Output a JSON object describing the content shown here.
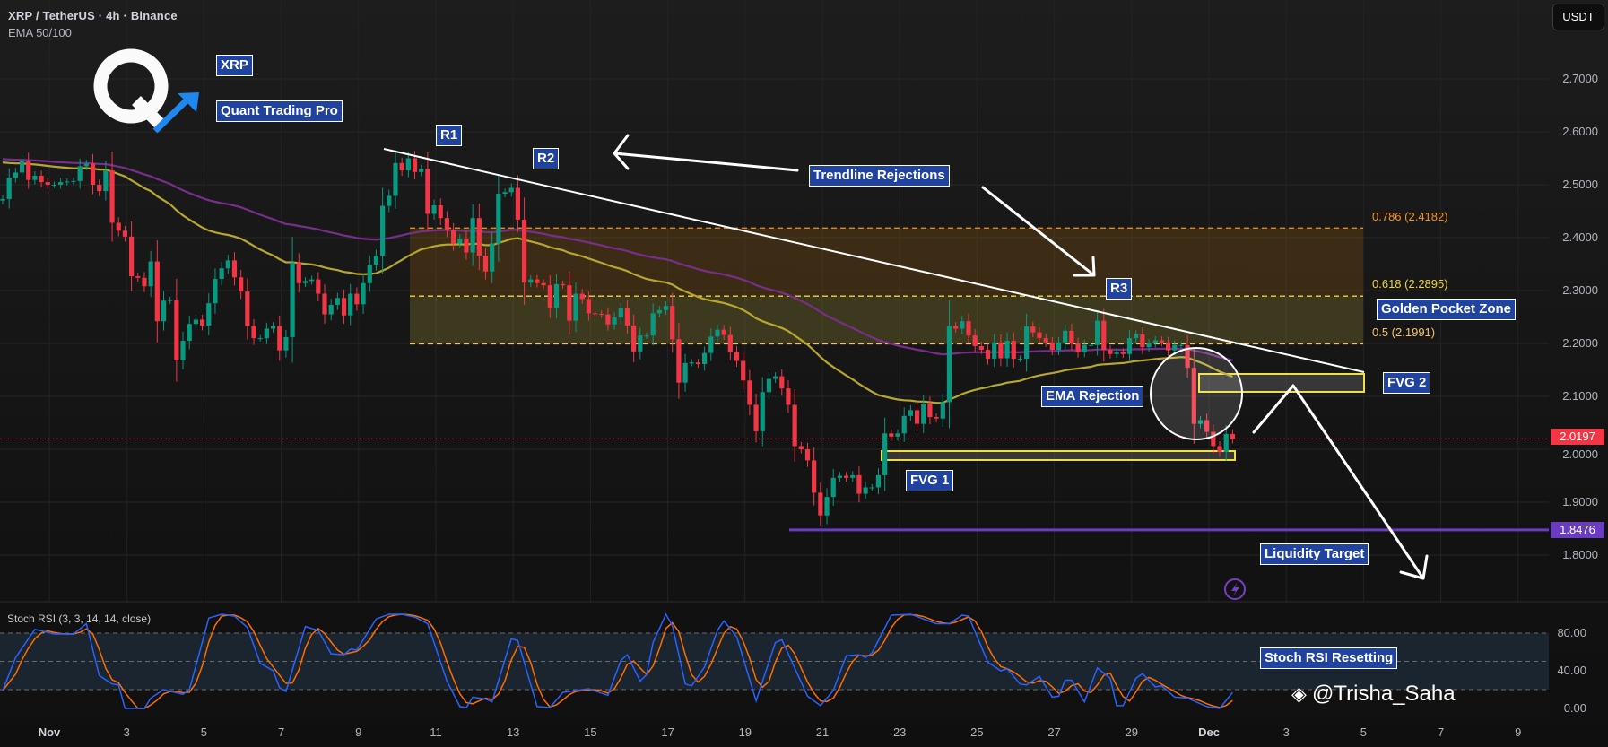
{
  "header": {
    "symbol_line": "XRP / TetherUS · 4h · Binance",
    "indicator_line": "EMA 50/100"
  },
  "currency_button": "USDT",
  "branding": {
    "logo_letter": "Q",
    "tag_symbol": "XRP",
    "tag_brand": "Quant Trading Pro"
  },
  "watermark": "@Trisha_Saha",
  "annotations": {
    "r1": "R1",
    "r2": "R2",
    "r3": "R3",
    "trendline": "Trendline Rejections",
    "golden_pocket": "Golden Pocket Zone",
    "ema_rejection": "EMA Rejection",
    "fvg1": "FVG 1",
    "fvg2": "FVG 2",
    "liquidity": "Liquidity Target",
    "stoch_reset": "Stoch RSI Resetting"
  },
  "colors": {
    "up": "#089981",
    "down": "#f23645",
    "ema50": "#b8a72e",
    "ema100": "#7a2e8c",
    "label_bg": "#2143a0",
    "liquidity": "#6a3cc0",
    "stoch_k": "#2962ff",
    "stoch_d": "#ff6d00"
  },
  "chart_data": {
    "type": "candlestick",
    "symbol": "XRP / TetherUS",
    "interval": "4h",
    "exchange": "Binance",
    "y_ticks": [
      "2.7000",
      "2.6000",
      "2.5000",
      "2.4000",
      "2.3000",
      "2.2000",
      "2.1000",
      "2.0000",
      "1.9000",
      "1.8000"
    ],
    "x_ticks": [
      "Nov",
      "3",
      "5",
      "7",
      "9",
      "11",
      "13",
      "15",
      "17",
      "19",
      "21",
      "23",
      "25",
      "27",
      "29",
      "Dec",
      "3",
      "5",
      "7",
      "9"
    ],
    "first_open": 2.47,
    "close": [
      2.473,
      2.513,
      2.523,
      2.544,
      2.509,
      2.517,
      2.505,
      2.5,
      2.5,
      2.505,
      2.506,
      2.507,
      2.535,
      2.54,
      2.5,
      2.488,
      2.527,
      2.428,
      2.413,
      2.402,
      2.327,
      2.324,
      2.308,
      2.355,
      2.242,
      2.281,
      2.282,
      2.168,
      2.205,
      2.237,
      2.245,
      2.234,
      2.276,
      2.322,
      2.342,
      2.357,
      2.325,
      2.298,
      2.233,
      2.21,
      2.21,
      2.228,
      2.233,
      2.187,
      2.212,
      2.353,
      2.314,
      2.318,
      2.321,
      2.294,
      2.255,
      2.273,
      2.286,
      2.253,
      2.294,
      2.274,
      2.314,
      2.349,
      2.366,
      2.46,
      2.479,
      2.541,
      2.527,
      2.55,
      2.524,
      2.53,
      2.445,
      2.461,
      2.437,
      2.414,
      2.389,
      2.398,
      2.372,
      2.437,
      2.366,
      2.336,
      2.389,
      2.483,
      2.486,
      2.494,
      2.434,
      2.315,
      2.321,
      2.314,
      2.31,
      2.267,
      2.312,
      2.31,
      2.243,
      2.294,
      2.284,
      2.257,
      2.256,
      2.255,
      2.236,
      2.249,
      2.266,
      2.234,
      2.185,
      2.215,
      2.215,
      2.257,
      2.263,
      2.271,
      2.208,
      2.126,
      2.163,
      2.164,
      2.161,
      2.182,
      2.213,
      2.226,
      2.216,
      2.184,
      2.167,
      2.13,
      2.084,
      2.034,
      2.108,
      2.133,
      2.138,
      2.115,
      2.084,
      2.006,
      2.0,
      1.979,
      1.918,
      1.875,
      1.91,
      1.946,
      1.95,
      1.946,
      1.951,
      1.916,
      1.928,
      1.928,
      1.951,
      2.03,
      2.024,
      2.03,
      2.063,
      2.074,
      2.048,
      2.086,
      2.061,
      2.058,
      2.089,
      2.233,
      2.228,
      2.242,
      2.215,
      2.195,
      2.188,
      2.171,
      2.202,
      2.172,
      2.205,
      2.171,
      2.171,
      2.232,
      2.221,
      2.21,
      2.202,
      2.188,
      2.202,
      2.224,
      2.2,
      2.184,
      2.197,
      2.197,
      2.243,
      2.188,
      2.18,
      2.184,
      2.18,
      2.21,
      2.217,
      2.193,
      2.2,
      2.206,
      2.202,
      2.187,
      2.197,
      2.197,
      2.154,
      2.048,
      2.055,
      2.033,
      2.006,
      1.995,
      2.029,
      2.0197
    ],
    "ema": [
      {
        "name": "EMA 50",
        "period": 50,
        "seed": 2.545
      },
      {
        "name": "EMA 100",
        "period": 100,
        "seed": 2.55
      }
    ],
    "last_price": {
      "value": 2.0197,
      "label": "2.0197"
    },
    "liquidity_level": {
      "value": 1.8476,
      "label": "1.8476"
    },
    "fib_levels": [
      {
        "ratio": "0.786",
        "price": 2.4182,
        "label": "0.786 (2.4182)",
        "color": "#f7931a"
      },
      {
        "ratio": "0.618",
        "price": 2.2895,
        "label": "0.618 (2.2895)",
        "color": "#f0d43a"
      },
      {
        "ratio": "0.5",
        "price": 2.1991,
        "label": "0.5 (2.1991)",
        "color": "#f5c26b"
      }
    ],
    "fvg_zones": [
      {
        "name": "FVG 1",
        "top": 1.9966,
        "bottom": 1.9797
      },
      {
        "name": "FVG 2",
        "top": 2.1424,
        "bottom": 2.1085
      }
    ],
    "stoch_rsi": {
      "title": "Stoch RSI (3, 3, 14, 14, close)",
      "y_ticks": [
        "80.00",
        "40.00",
        "0.00"
      ],
      "bands": [
        80,
        50,
        20
      ],
      "k_points": [
        [
          "Oct 30 20:00",
          19
        ],
        [
          "Oct 31 04:00",
          54
        ],
        [
          "Oct 31 16:00",
          84
        ],
        [
          "Nov 1 04:00",
          79
        ],
        [
          "Nov 1 16:00",
          79
        ],
        [
          "Nov 2 00:00",
          90
        ],
        [
          "Nov 2 08:00",
          35
        ],
        [
          "Nov 2 16:00",
          26
        ],
        [
          "Nov 2 20:00",
          25
        ],
        [
          "Nov 3 00:00",
          0
        ],
        [
          "Nov 3 12:00",
          0
        ],
        [
          "Nov 3 16:00",
          11
        ],
        [
          "Nov 4 00:00",
          20
        ],
        [
          "Nov 4 12:00",
          15
        ],
        [
          "Nov 4 16:00",
          20
        ],
        [
          "Nov 5 04:00",
          96
        ],
        [
          "Nov 5 12:00",
          100
        ],
        [
          "Nov 5 20:00",
          98
        ],
        [
          "Nov 6 04:00",
          86
        ],
        [
          "Nov 6 12:00",
          48
        ],
        [
          "Nov 6 20:00",
          40
        ],
        [
          "Nov 7 00:00",
          22
        ],
        [
          "Nov 7 04:00",
          18
        ],
        [
          "Nov 7 16:00",
          87
        ],
        [
          "Nov 8 00:00",
          83
        ],
        [
          "Nov 8 08:00",
          58
        ],
        [
          "Nov 8 16:00",
          57
        ],
        [
          "Nov 8 20:00",
          63
        ],
        [
          "Nov 9 00:00",
          62
        ],
        [
          "Nov 9 12:00",
          95
        ],
        [
          "Nov 9 20:00",
          100
        ],
        [
          "Nov 10 04:00",
          100
        ],
        [
          "Nov 10 12:00",
          97
        ],
        [
          "Nov 10 20:00",
          90
        ],
        [
          "Nov 11 08:00",
          29
        ],
        [
          "Nov 11 16:00",
          2
        ],
        [
          "Nov 11 20:00",
          1
        ],
        [
          "Nov 12 00:00",
          12
        ],
        [
          "Nov 12 08:00",
          10
        ],
        [
          "Nov 12 12:00",
          7
        ],
        [
          "Nov 13 00:00",
          74
        ],
        [
          "Nov 13 04:00",
          72
        ],
        [
          "Nov 13 16:00",
          2
        ],
        [
          "Nov 14 00:00",
          1
        ],
        [
          "Nov 14 08:00",
          17
        ],
        [
          "Nov 15 00:00",
          21
        ],
        [
          "Nov 15 12:00",
          14
        ],
        [
          "Nov 15 20:00",
          51
        ],
        [
          "Nov 16 00:00",
          57
        ],
        [
          "Nov 16 08:00",
          29
        ],
        [
          "Nov 16 12:00",
          36
        ],
        [
          "Nov 16 16:00",
          70
        ],
        [
          "Nov 17 00:00",
          100
        ],
        [
          "Nov 17 04:00",
          88
        ],
        [
          "Nov 17 12:00",
          26
        ],
        [
          "Nov 17 16:00",
          24
        ],
        [
          "Nov 18 00:00",
          44
        ],
        [
          "Nov 18 08:00",
          83
        ],
        [
          "Nov 18 12:00",
          93
        ],
        [
          "Nov 18 20:00",
          76
        ],
        [
          "Nov 19 08:00",
          8
        ],
        [
          "Nov 19 20:00",
          70
        ],
        [
          "Nov 20 00:00",
          73
        ],
        [
          "Nov 20 16:00",
          13
        ],
        [
          "Nov 21 00:00",
          3
        ],
        [
          "Nov 21 08:00",
          19
        ],
        [
          "Nov 21 16:00",
          56
        ],
        [
          "Nov 22 00:00",
          57
        ],
        [
          "Nov 22 04:00",
          54
        ],
        [
          "Nov 22 08:00",
          59
        ],
        [
          "Nov 22 20:00",
          99
        ],
        [
          "Nov 23 08:00",
          100
        ],
        [
          "Nov 23 16:00",
          95
        ],
        [
          "Nov 24 00:00",
          90
        ],
        [
          "Nov 24 08:00",
          90
        ],
        [
          "Nov 24 16:00",
          99
        ],
        [
          "Nov 24 20:00",
          98
        ],
        [
          "Nov 25 08:00",
          49
        ],
        [
          "Nov 25 16:00",
          40
        ],
        [
          "Nov 25 20:00",
          42
        ],
        [
          "Nov 26 04:00",
          26
        ],
        [
          "Nov 26 08:00",
          25
        ],
        [
          "Nov 26 16:00",
          34
        ],
        [
          "Nov 27 00:00",
          12
        ],
        [
          "Nov 27 04:00",
          13
        ],
        [
          "Nov 27 08:00",
          30
        ],
        [
          "Nov 27 12:00",
          30
        ],
        [
          "Nov 27 20:00",
          7
        ],
        [
          "Nov 28 04:00",
          43
        ],
        [
          "Nov 28 12:00",
          32
        ],
        [
          "Nov 28 16:00",
          3
        ],
        [
          "Nov 28 20:00",
          3
        ],
        [
          "Nov 29 04:00",
          32
        ],
        [
          "Nov 29 08:00",
          37
        ],
        [
          "Nov 29 16:00",
          23
        ],
        [
          "Nov 29 20:00",
          24
        ],
        [
          "Nov 30 04:00",
          12
        ],
        [
          "Nov 30 12:00",
          11
        ],
        [
          "Dec 1 00:00",
          2
        ],
        [
          "Dec 1 08:00",
          0
        ],
        [
          "Dec 1 16:00",
          17
        ]
      ]
    }
  }
}
